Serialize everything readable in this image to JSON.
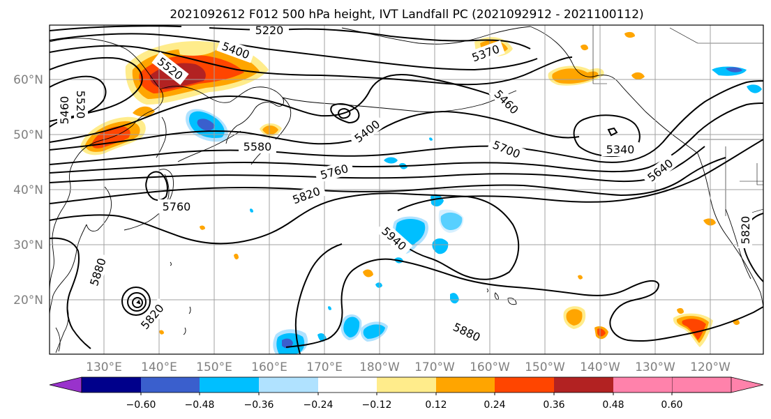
{
  "title": "2021092612 F012 500 hPa height, IVT Landfall PC (2021092912 - 2021100112)",
  "axes": {
    "lat_labels": [
      "60°N",
      "50°N",
      "40°N",
      "30°N",
      "20°N"
    ],
    "lon_labels": [
      "130°E",
      "140°E",
      "150°E",
      "160°E",
      "170°E",
      "180°W",
      "170°W",
      "160°W",
      "150°W",
      "140°W",
      "130°W",
      "120°W"
    ]
  },
  "contour_labels": [
    "5220",
    "5400",
    "5520",
    "5460",
    "5520",
    "5580",
    "5400",
    "5370",
    "5460",
    "5700",
    "5340",
    "5640",
    "5760",
    "5760",
    "5820",
    "5940",
    "5880",
    "5820",
    "5880",
    "5820"
  ],
  "colorbar": {
    "colors": [
      "#9932cc",
      "#00008b",
      "#3a5fcd",
      "#00bfff",
      "#b0e2ff",
      "#ffffff",
      "#ffec8b",
      "#ffa500",
      "#ff4500",
      "#b22222",
      "#ff82ab"
    ],
    "tick_labels": [
      "−0.60",
      "−0.48",
      "−0.36",
      "−0.24",
      "−0.12",
      "0.12",
      "0.24",
      "0.36",
      "0.48",
      "0.60"
    ]
  },
  "palette": {
    "positive_low": "#ffec8b",
    "positive_mid": "#ffa500",
    "positive_high": "#ff4500",
    "positive_max": "#b22222",
    "negative_low": "#b0e2ff",
    "negative_mid": "#00bfff",
    "negative_high": "#3a5fcd"
  }
}
